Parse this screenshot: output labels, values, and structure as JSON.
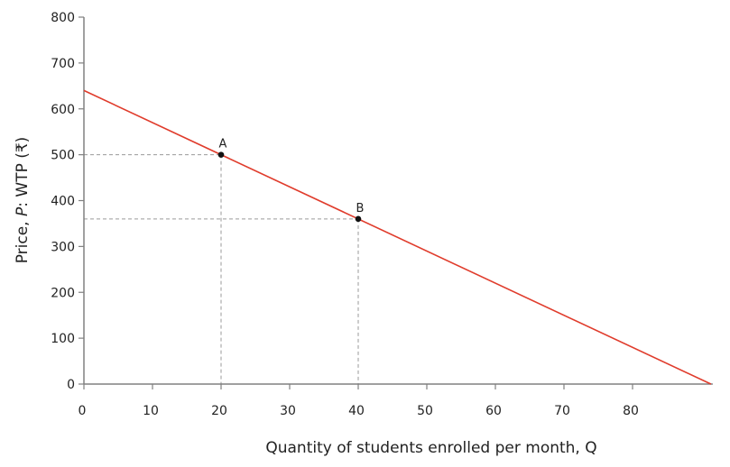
{
  "chart_data": {
    "type": "line",
    "title": "",
    "xlabel": "Quantity of students enrolled per month, Q",
    "ylabel_parts": [
      "Price, ",
      "P",
      ": WTP (₹)"
    ],
    "xlim": [
      0,
      91.43
    ],
    "ylim": [
      0,
      800
    ],
    "xticks": [
      0,
      10,
      20,
      30,
      40,
      50,
      60,
      70,
      80
    ],
    "yticks": [
      0,
      100,
      200,
      300,
      400,
      500,
      600,
      700,
      800
    ],
    "grid": false,
    "line": {
      "x": [
        0,
        91.43
      ],
      "y": [
        640,
        0
      ],
      "color": "#e03c2c"
    },
    "points": [
      {
        "label": "A",
        "x": 20,
        "y": 500
      },
      {
        "label": "B",
        "x": 40,
        "y": 360
      }
    ],
    "axis_color": "#808080",
    "guide_color": "#9a9a9a"
  }
}
